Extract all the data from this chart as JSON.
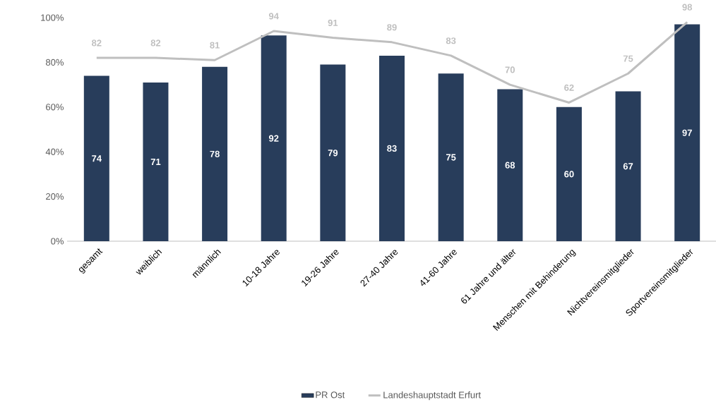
{
  "chart_data": {
    "type": "bar",
    "categories": [
      "gesamt",
      "weiblich",
      "männlich",
      "10-18 Jahre",
      "19-26 Jahre",
      "27-40 Jahre",
      "41-60 Jahre",
      "61 Jahre und älter",
      "Menschen mit Behinderung",
      "Nichtvereinsmitglieder",
      "Sportvereinsmitglieder"
    ],
    "series": [
      {
        "name": "PR Ost",
        "color": "#283d5b",
        "values": [
          74,
          71,
          78,
          92,
          79,
          83,
          75,
          68,
          60,
          67,
          97
        ]
      },
      {
        "name": "Landeshauptstadt Erfurt",
        "type": "line",
        "color": "#bfbfbf",
        "values": [
          82,
          82,
          81,
          94,
          91,
          89,
          83,
          70,
          62,
          75,
          98
        ]
      }
    ],
    "ylim": [
      0,
      100
    ],
    "yticks": [
      {
        "value": 0,
        "label": "0%"
      },
      {
        "value": 20,
        "label": "20%"
      },
      {
        "value": 40,
        "label": "40%"
      },
      {
        "value": 60,
        "label": "60%"
      },
      {
        "value": 80,
        "label": "80%"
      },
      {
        "value": 100,
        "label": "100%"
      }
    ],
    "data_labels": true,
    "legend": "bottom"
  }
}
